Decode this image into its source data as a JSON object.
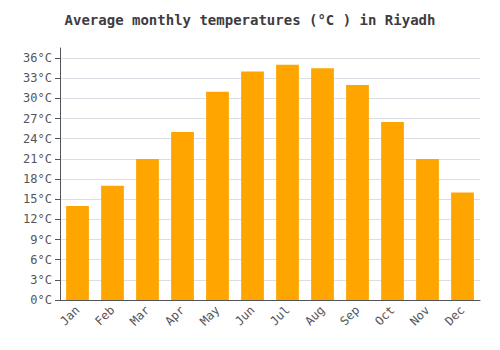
{
  "chart_data": {
    "type": "bar",
    "title": "Average monthly temperatures (°C ) in Riyadh",
    "categories": [
      "Jan",
      "Feb",
      "Mar",
      "Apr",
      "May",
      "Jun",
      "Jul",
      "Aug",
      "Sep",
      "Oct",
      "Nov",
      "Dec"
    ],
    "values": [
      14,
      17,
      21,
      25,
      31,
      34,
      35,
      34.5,
      32,
      26.5,
      21,
      16
    ],
    "color": "#FFA500",
    "ylim": [
      0,
      37.5
    ],
    "yticks": [
      {
        "value": 0,
        "label": "0°C"
      },
      {
        "value": 3,
        "label": "3°C"
      },
      {
        "value": 6,
        "label": "6°C"
      },
      {
        "value": 9,
        "label": "9°C"
      },
      {
        "value": 12,
        "label": "12°C"
      },
      {
        "value": 15,
        "label": "15°C"
      },
      {
        "value": 18,
        "label": "18°C"
      },
      {
        "value": 21,
        "label": "21°C"
      },
      {
        "value": 24,
        "label": "24°C"
      },
      {
        "value": 27,
        "label": "27°C"
      },
      {
        "value": 30,
        "label": "30°C"
      },
      {
        "value": 33,
        "label": "33°C"
      },
      {
        "value": 36,
        "label": "36°C"
      }
    ],
    "grid": true
  }
}
